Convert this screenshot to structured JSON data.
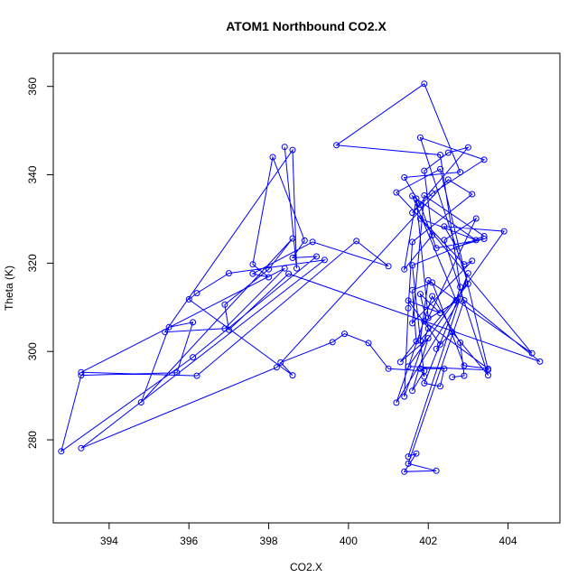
{
  "chart_data": {
    "type": "scatter",
    "title": "ATOM1 Northbound CO2.X",
    "xlabel": "CO2.X",
    "ylabel": "Theta (K)",
    "xlim": [
      392.6,
      405.3
    ],
    "ylim": [
      261.2,
      367.5
    ],
    "xticks": [
      394,
      396,
      398,
      400,
      402,
      404
    ],
    "yticks": [
      280,
      300,
      320,
      340,
      360
    ],
    "grid": false,
    "line_color": "#0000ff",
    "point_marker": "open-circle",
    "x": [
      402.6,
      402.9,
      402.8,
      402.1,
      401.2,
      402.8,
      401.9,
      403.5,
      402.9,
      402.1,
      401.6,
      401.7,
      401.3,
      402.0,
      401.6,
      401.9,
      401.0,
      400.5,
      399.9,
      399.6,
      398.3,
      398.6,
      396.0,
      396.2,
      397.0,
      399.4,
      393.3,
      398.2,
      402.5,
      403.1,
      401.6,
      401.5,
      401.4,
      402.0,
      401.8,
      402.3,
      401.5,
      402.3,
      402.2,
      402.6,
      403.5,
      402.4,
      403.2,
      402.0,
      401.7,
      401.4,
      402.1,
      401.9,
      402.5,
      403.0,
      401.6,
      402.1,
      403.4,
      401.8,
      403.0,
      401.8,
      402.0,
      404.6,
      401.8,
      403.2,
      401.6,
      402.7,
      402.8,
      402.3,
      399.7,
      401.9,
      402.8,
      401.4,
      401.8,
      402.2,
      403.4,
      402.7,
      402.4,
      403.9,
      401.5,
      403.5,
      402.3,
      401.2,
      402.9,
      403.1,
      401.6,
      401.9,
      403.4,
      401.6,
      401.9,
      401.8,
      402.4,
      402.3,
      401.9,
      403.0,
      401.5,
      401.7,
      401.4,
      402.2,
      401.5,
      402.9,
      404.8,
      398.5,
      397.0,
      396.9,
      398.0,
      398.6,
      394.8,
      395.5,
      396.1,
      395.7,
      393.3,
      392.8,
      396.1,
      399.2,
      398.6,
      398.9,
      398.1,
      397.6,
      398.0,
      397.6,
      399.1,
      401.0,
      400.2,
      396.2,
      393.3,
      398.4,
      396.9,
      395.4,
      398.6,
      398.7,
      398.4
    ],
    "y": [
      294.2,
      294.5,
      302.0,
      312.5,
      288.4,
      311.9,
      306.8,
      296.1,
      296.8,
      315.6,
      313.9,
      302.3,
      297.6,
      303.0,
      291.1,
      295.6,
      296.1,
      301.9,
      304.0,
      302.1,
      297.5,
      294.6,
      311.8,
      313.2,
      317.7,
      320.7,
      278.1,
      296.4,
      338.9,
      335.6,
      324.8,
      309.8,
      289.8,
      305.2,
      313.0,
      308.7,
      311.5,
      301.6,
      300.6,
      304.4,
      294.6,
      325.2,
      330.1,
      307.6,
      334.6,
      318.6,
      326.3,
      340.9,
      345.0,
      346.2,
      331.4,
      335.8,
      343.4,
      348.4,
      315.3,
      302.5,
      316.1,
      299.6,
      330.1,
      325.2,
      335.2,
      311.6,
      314.6,
      344.5,
      346.7,
      360.6,
      340.6,
      339.4,
      333.2,
      323.4,
      325.5,
      323.7,
      328.3,
      327.2,
      296.6,
      295.8,
      341.3,
      336.0,
      319.7,
      320.5,
      306.4,
      335.3,
      326.1,
      319.5,
      294.3,
      296.1,
      296.1,
      292.1,
      292.8,
      317.7,
      276.2,
      276.9,
      272.8,
      273.0,
      274.6,
      311.6,
      297.7,
      317.6,
      304.9,
      310.6,
      318.6,
      325.6,
      288.5,
      305.5,
      306.6,
      295.2,
      294.6,
      277.4,
      298.7,
      321.5,
      321.2,
      325.1,
      344.0,
      319.7,
      316.8,
      317.6,
      324.8,
      319.3,
      325.0,
      294.5,
      295.3,
      318.8,
      305.2,
      304.4,
      345.6,
      318.8,
      346.3
    ]
  }
}
